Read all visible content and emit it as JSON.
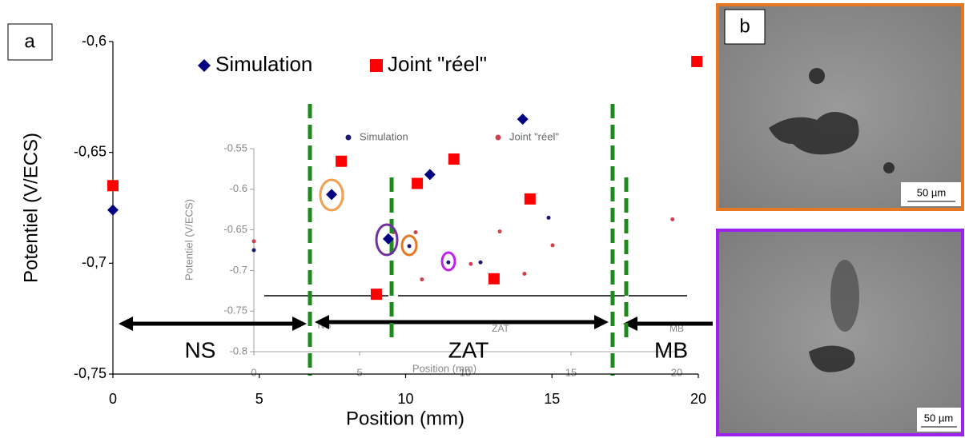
{
  "chart_data": [
    {
      "type": "scatter",
      "x_label": "Position (mm)",
      "y_label": "Potentiel (V/ECS)",
      "xlim": [
        0,
        20
      ],
      "ylim": [
        -0.75,
        -0.6
      ],
      "xticks": [
        0,
        5,
        10,
        15,
        20
      ],
      "yticks": [
        {
          "value": -0.75,
          "label": "-0,75"
        },
        {
          "value": -0.7,
          "label": "-0,7"
        },
        {
          "value": -0.65,
          "label": "-0,65"
        },
        {
          "value": -0.6,
          "label": "-0,6"
        }
      ],
      "annotations": [
        "NS",
        "ZAT",
        "MB"
      ],
      "series": [
        {
          "name": "Simulation",
          "color": "#000080",
          "marker": "diamond",
          "x": [
            0,
            7.47,
            9.41,
            10.83,
            14.0
          ],
          "values": [
            -0.676,
            -0.669,
            -0.689,
            -0.66,
            -0.635
          ]
        },
        {
          "name": "Joint \"réel\"",
          "color": "#ff0000",
          "marker": "square",
          "x": [
            0,
            7.8,
            9.0,
            10.4,
            11.65,
            13.02,
            14.25,
            19.95
          ],
          "values": [
            -0.665,
            -0.654,
            -0.714,
            -0.664,
            -0.653,
            -0.707,
            -0.671,
            -0.609
          ]
        }
      ]
    },
    {
      "type": "scatter",
      "x_label": "Position (mm)",
      "y_label": "Potentiel (V/ECS)",
      "xlim": [
        0,
        20
      ],
      "ylim": [
        -0.8,
        -0.55
      ],
      "xticks": [
        0,
        5,
        10,
        15,
        20
      ],
      "yticks": [
        -0.8,
        -0.75,
        -0.7,
        -0.65,
        -0.6,
        -0.55
      ],
      "annotations": [
        "NS",
        "ZAT",
        "MB"
      ],
      "series": [
        {
          "name": "Simulation",
          "color": "#1a1a6e",
          "marker": "dot",
          "x": [
            0,
            6.33,
            7.35,
            9.2,
            10.72,
            13.94
          ],
          "values": [
            -0.675,
            -0.663,
            -0.67,
            -0.69,
            -0.69,
            -0.635
          ]
        },
        {
          "name": "Joint \"réel\"",
          "color": "#d04050",
          "marker": "dot",
          "x": [
            0,
            6.6,
            7.65,
            7.95,
            10.26,
            11.63,
            12.8,
            14.13,
            19.8
          ],
          "values": [
            -0.664,
            -0.653,
            -0.653,
            -0.711,
            -0.692,
            -0.652,
            -0.704,
            -0.669,
            -0.637
          ]
        }
      ]
    }
  ],
  "panel_labels": [
    "a",
    "b"
  ],
  "scale_bars": [
    "50 µm",
    "50 µm"
  ]
}
